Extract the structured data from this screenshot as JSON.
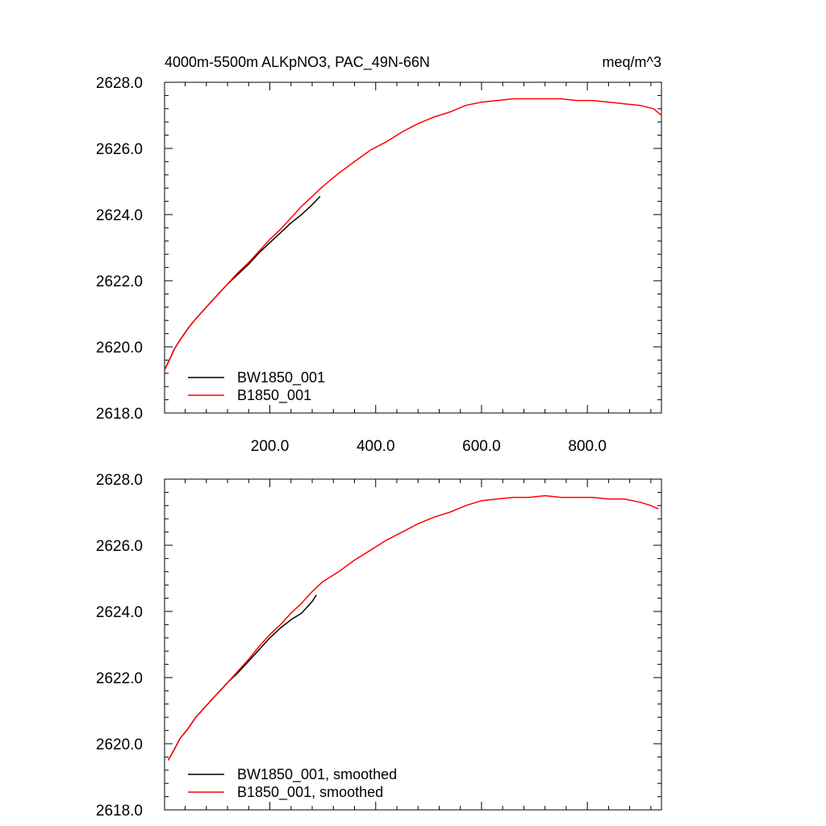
{
  "header": {
    "left_title": "4000m-5500m ALKpNO3, PAC_49N-66N",
    "right_title": "meq/m^3"
  },
  "colors": {
    "series_a": "#000000",
    "series_b": "#ff0000"
  },
  "chart_data": [
    {
      "type": "line",
      "title": "",
      "xlabel": "",
      "ylabel": "",
      "xlim": [
        1,
        940
      ],
      "ylim": [
        2618.0,
        2628.0
      ],
      "x_ticks": [
        200.0,
        400.0,
        600.0,
        800.0
      ],
      "x_tick_labels": [
        "200.0",
        "400.0",
        "600.0",
        "800.0"
      ],
      "y_ticks": [
        2618.0,
        2620.0,
        2622.0,
        2624.0,
        2626.0,
        2628.0
      ],
      "y_tick_labels": [
        "2618.0",
        "2620.0",
        "2622.0",
        "2624.0",
        "2626.0",
        "2628.0"
      ],
      "grid": false,
      "legend_position": "bottom-left",
      "series": [
        {
          "name": "BW1850_001",
          "color": "#000000",
          "x": [
            1,
            10,
            20,
            30,
            45,
            60,
            80,
            100,
            120,
            140,
            160,
            180,
            200,
            220,
            240,
            260,
            280,
            295
          ],
          "y": [
            2619.3,
            2619.6,
            2619.95,
            2620.2,
            2620.55,
            2620.85,
            2621.2,
            2621.55,
            2621.9,
            2622.2,
            2622.5,
            2622.85,
            2623.15,
            2623.45,
            2623.75,
            2624.0,
            2624.3,
            2624.55
          ]
        },
        {
          "name": "B1850_001",
          "color": "#ff0000",
          "x": [
            1,
            10,
            20,
            30,
            45,
            60,
            80,
            100,
            120,
            140,
            160,
            180,
            200,
            220,
            240,
            260,
            280,
            300,
            330,
            360,
            390,
            420,
            450,
            480,
            510,
            540,
            570,
            600,
            630,
            660,
            690,
            720,
            750,
            780,
            810,
            840,
            870,
            900,
            925,
            940
          ],
          "y": [
            2619.3,
            2619.6,
            2619.95,
            2620.2,
            2620.55,
            2620.85,
            2621.2,
            2621.55,
            2621.9,
            2622.25,
            2622.55,
            2622.9,
            2623.25,
            2623.55,
            2623.9,
            2624.25,
            2624.55,
            2624.85,
            2625.25,
            2625.6,
            2625.95,
            2626.2,
            2626.5,
            2626.75,
            2626.95,
            2627.1,
            2627.3,
            2627.4,
            2627.45,
            2627.5,
            2627.5,
            2627.5,
            2627.5,
            2627.45,
            2627.45,
            2627.4,
            2627.35,
            2627.3,
            2627.2,
            2627.0
          ]
        }
      ]
    },
    {
      "type": "line",
      "title": "",
      "xlabel": "",
      "ylabel": "",
      "xlim": [
        1,
        940
      ],
      "ylim": [
        2618.0,
        2628.0
      ],
      "y_ticks": [
        2618.0,
        2620.0,
        2622.0,
        2624.0,
        2626.0,
        2628.0
      ],
      "y_tick_labels": [
        "2618.0",
        "2620.0",
        "2622.0",
        "2624.0",
        "2626.0",
        "2628.0"
      ],
      "grid": false,
      "legend_position": "bottom-left",
      "series": [
        {
          "name": "BW1850_001, smoothed",
          "color": "#000000",
          "x": [
            8,
            20,
            30,
            45,
            60,
            80,
            100,
            120,
            140,
            160,
            180,
            200,
            220,
            240,
            260,
            280,
            288
          ],
          "y": [
            2619.5,
            2619.85,
            2620.15,
            2620.45,
            2620.8,
            2621.15,
            2621.5,
            2621.85,
            2622.15,
            2622.5,
            2622.85,
            2623.2,
            2623.5,
            2623.75,
            2623.95,
            2624.3,
            2624.5
          ]
        },
        {
          "name": "B1850_001, smoothed",
          "color": "#ff0000",
          "x": [
            8,
            20,
            30,
            45,
            60,
            80,
            100,
            120,
            140,
            160,
            180,
            200,
            220,
            240,
            260,
            280,
            300,
            330,
            360,
            390,
            420,
            450,
            480,
            510,
            540,
            570,
            600,
            630,
            660,
            690,
            720,
            750,
            780,
            810,
            840,
            870,
            900,
            920,
            934
          ],
          "y": [
            2619.5,
            2619.85,
            2620.15,
            2620.45,
            2620.8,
            2621.15,
            2621.5,
            2621.85,
            2622.2,
            2622.55,
            2622.95,
            2623.3,
            2623.6,
            2623.95,
            2624.25,
            2624.6,
            2624.9,
            2625.2,
            2625.55,
            2625.85,
            2626.15,
            2626.4,
            2626.65,
            2626.85,
            2627.0,
            2627.2,
            2627.35,
            2627.4,
            2627.45,
            2627.45,
            2627.5,
            2627.45,
            2627.45,
            2627.45,
            2627.4,
            2627.4,
            2627.3,
            2627.2,
            2627.1
          ]
        }
      ]
    }
  ]
}
